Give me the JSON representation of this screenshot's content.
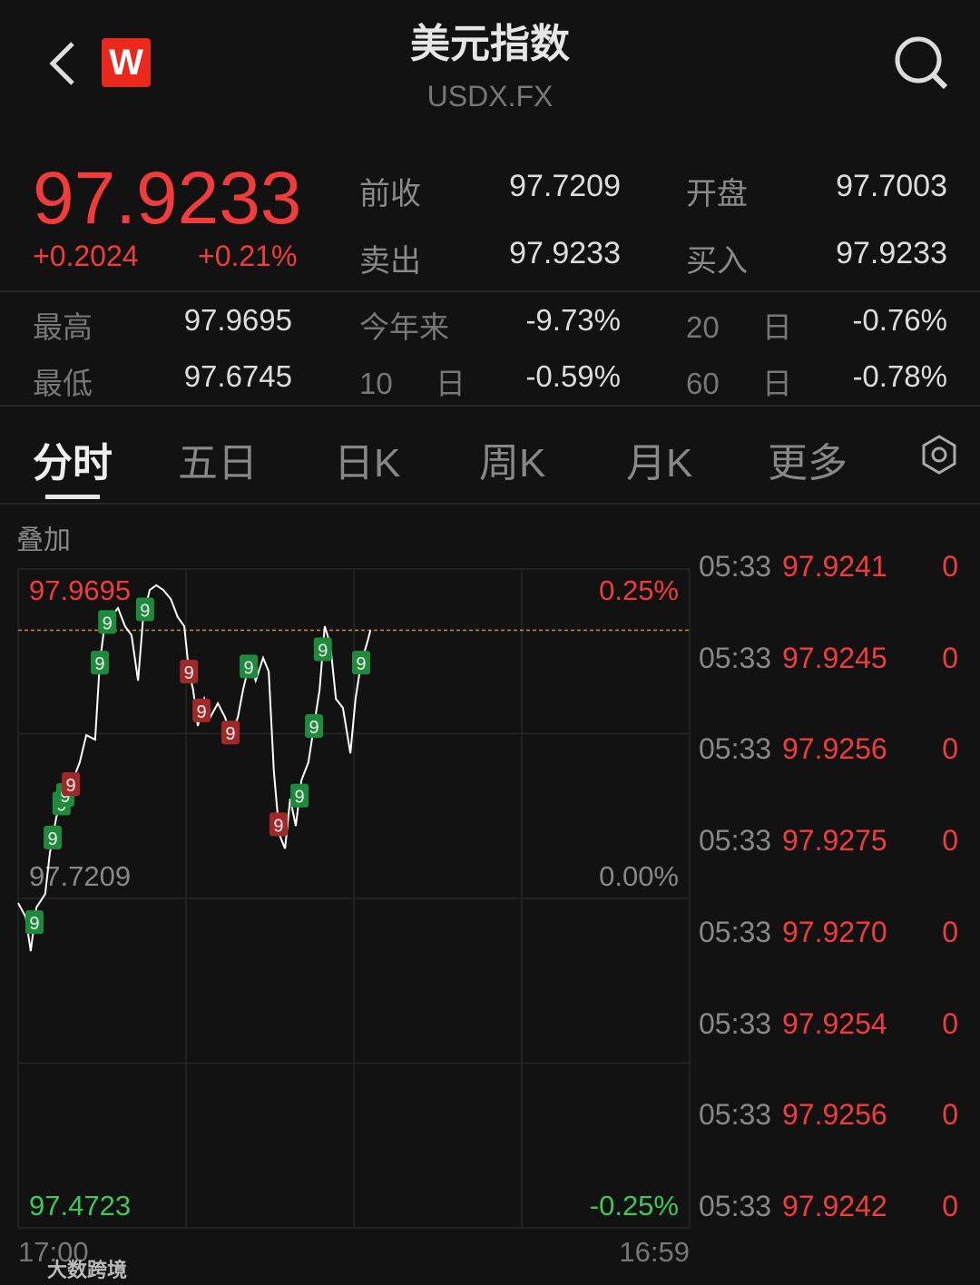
{
  "header": {
    "title": "美元指数",
    "subtitle": "USDX.FX",
    "logo": "W"
  },
  "quote": {
    "price": "97.9233",
    "change": "+0.2024",
    "change_pct": "+0.21%"
  },
  "stats_top": [
    [
      "前收",
      "97.7209",
      "开盘",
      "97.7003"
    ],
    [
      "卖出",
      "97.9233",
      "买入",
      "97.9233"
    ]
  ],
  "stats_bottom": [
    [
      "最高",
      "97.9695",
      "今年来",
      "-9.73%",
      "20 日",
      "-0.76%"
    ],
    [
      "最低",
      "97.6745",
      "10 日",
      "-0.59%",
      "60 日",
      "-0.78%"
    ]
  ],
  "tabs": [
    "分时",
    "五日",
    "日K",
    "周K",
    "月K",
    "更多"
  ],
  "overlay_label": "叠加",
  "chart_data": {
    "type": "line",
    "color": "#ffffff",
    "x": [
      0,
      16,
      27,
      39,
      58,
      68,
      82,
      97,
      117,
      132,
      146,
      165,
      175,
      185,
      198,
      214,
      229,
      243,
      257,
      268,
      282,
      296,
      311,
      327,
      342,
      356,
      366,
      375,
      385,
      399,
      412,
      428,
      443,
      457,
      471,
      482,
      496,
      509,
      525,
      537,
      548,
      560,
      572,
      583,
      595,
      607,
      622,
      634,
      646,
      657,
      669,
      681,
      696,
      712,
      723,
      735,
      747,
      755
    ],
    "values": [
      97.7174,
      97.7071,
      97.6811,
      97.714,
      97.7243,
      97.7551,
      97.7825,
      97.7962,
      97.8099,
      97.8236,
      97.8441,
      97.8407,
      97.8989,
      97.9263,
      97.9332,
      97.94,
      97.9263,
      97.9195,
      97.8852,
      97.9332,
      97.9537,
      97.9572,
      97.9537,
      97.9469,
      97.9332,
      97.9263,
      97.8921,
      97.8784,
      97.851,
      97.8715,
      97.8578,
      97.8681,
      97.8578,
      97.8441,
      97.8578,
      97.8784,
      97.8989,
      97.8852,
      97.9024,
      97.8921,
      97.8167,
      97.7688,
      97.7585,
      97.7962,
      97.7756,
      97.8099,
      97.8236,
      97.851,
      97.8784,
      97.9263,
      97.9126,
      97.8715,
      97.8647,
      97.8304,
      97.8715,
      97.8989,
      97.9126,
      97.9233
    ],
    "xlim": [
      0,
      1439
    ],
    "xticks": [
      {
        "value": 0,
        "label": "17:00"
      },
      {
        "value": 1439,
        "label": "16:59"
      }
    ],
    "ylim": [
      97.4723,
      97.9695
    ],
    "yticks": [
      97.9695,
      97.7209,
      97.4723
    ],
    "y2lim": [
      -0.25,
      0.25
    ],
    "y2ticks": [
      {
        "value": 0.25,
        "label": "0.25%"
      },
      {
        "value": 0,
        "label": "0.00%"
      },
      {
        "value": -0.25,
        "label": "-0.25%"
      }
    ],
    "current": 97.9233,
    "grid_rows": 4,
    "grid_cols": 4,
    "markers": [
      {
        "x": 35,
        "label": "9",
        "color": "#1e8a3c"
      },
      {
        "x": 74,
        "label": "9",
        "color": "#1e8a3c"
      },
      {
        "x": 93,
        "label": "9",
        "color": "#1e8a3c"
      },
      {
        "x": 101,
        "label": "9",
        "color": "#1e8a3c"
      },
      {
        "x": 175,
        "label": "9",
        "color": "#1e8a3c"
      },
      {
        "x": 191,
        "label": "9",
        "color": "#1e8a3c"
      },
      {
        "x": 272,
        "label": "9",
        "color": "#1e8a3c"
      },
      {
        "x": 494,
        "label": "9",
        "color": "#1e8a3c"
      },
      {
        "x": 603,
        "label": "9",
        "color": "#1e8a3c"
      },
      {
        "x": 634,
        "label": "9",
        "color": "#1e8a3c"
      },
      {
        "x": 653,
        "label": "9",
        "color": "#1e8a3c"
      },
      {
        "x": 735,
        "label": "9",
        "color": "#1e8a3c"
      },
      {
        "x": 113,
        "label": "9",
        "color": "#a02828"
      },
      {
        "x": 366,
        "label": "9",
        "color": "#a02828"
      },
      {
        "x": 393,
        "label": "9",
        "color": "#a02828"
      },
      {
        "x": 455,
        "label": "9",
        "color": "#a02828"
      },
      {
        "x": 558,
        "label": "9",
        "color": "#a02828"
      }
    ]
  },
  "trades": [
    [
      "05:33",
      "97.9241",
      "0"
    ],
    [
      "05:33",
      "97.9245",
      "0"
    ],
    [
      "05:33",
      "97.9256",
      "0"
    ],
    [
      "05:33",
      "97.9275",
      "0"
    ],
    [
      "05:33",
      "97.9270",
      "0"
    ],
    [
      "05:33",
      "97.9254",
      "0"
    ],
    [
      "05:33",
      "97.9256",
      "0"
    ],
    [
      "05:33",
      "97.9242",
      "0"
    ]
  ],
  "watermark": "大数跨境"
}
